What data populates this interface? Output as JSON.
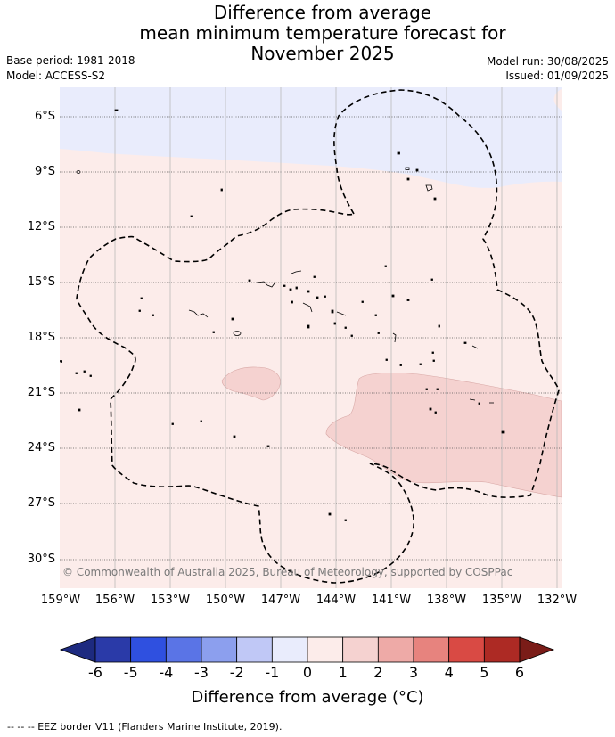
{
  "title": [
    "Difference from average",
    "mean minimum temperature forecast for",
    "November 2025"
  ],
  "base_period": "Base period: 1981-2018",
  "model": "Model: ACCESS-S2",
  "model_run": "Model run: 30/08/2025",
  "issued": "Issued: 01/09/2025",
  "copyright": "© Commonwealth of Australia 2025, Bureau of Meteorology, supported by COSPPac",
  "lat_ticks": [
    "6°S",
    "9°S",
    "12°S",
    "15°S",
    "18°S",
    "21°S",
    "24°S",
    "27°S",
    "30°S"
  ],
  "lon_ticks": [
    "159°W",
    "156°W",
    "153°W",
    "150°W",
    "147°W",
    "144°W",
    "141°W",
    "138°W",
    "135°W",
    "132°W"
  ],
  "colorbar": {
    "labels": [
      "-6",
      "-5",
      "-4",
      "-3",
      "-2",
      "-1",
      "0",
      "1",
      "2",
      "3",
      "4",
      "5",
      "6"
    ],
    "colors": [
      "#2a3aa8",
      "#2f50e0",
      "#5a74e6",
      "#8c9fee",
      "#c0c8f6",
      "#e9ecfc",
      "#fcecea",
      "#f5d2d0",
      "#eeaaa7",
      "#e7837e",
      "#d94a44",
      "#ad2a24"
    ],
    "under_color": "#1d2a80",
    "over_color": "#7a1c18",
    "title": "Difference from average (°C)"
  },
  "map_colors": {
    "cool": "#e9ecfc",
    "warm1": "#fcecea",
    "warm2": "#f5d2d0"
  },
  "footnote": "--  --  -- EEZ border V11 (Flanders Marine Institute, 2019)."
}
